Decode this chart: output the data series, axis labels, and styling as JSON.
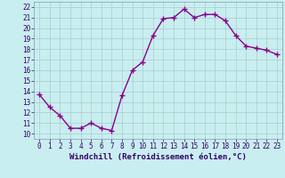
{
  "x": [
    0,
    1,
    2,
    3,
    4,
    5,
    6,
    7,
    8,
    9,
    10,
    11,
    12,
    13,
    14,
    15,
    16,
    17,
    18,
    19,
    20,
    21,
    22,
    23
  ],
  "y": [
    13.7,
    12.5,
    11.7,
    10.5,
    10.5,
    11.0,
    10.5,
    10.3,
    13.6,
    16.0,
    16.8,
    19.3,
    20.9,
    21.0,
    21.8,
    21.0,
    21.3,
    21.3,
    20.7,
    19.3,
    18.3,
    18.1,
    17.9,
    17.5
  ],
  "line_color": "#8B008B",
  "marker": "+",
  "marker_size": 4,
  "bg_color": "#c8eef0",
  "grid_color": "#aacccc",
  "xlabel": "Windchill (Refroidissement éolien,°C)",
  "xlim": [
    -0.5,
    23.5
  ],
  "ylim": [
    9.5,
    22.5
  ],
  "yticks": [
    10,
    11,
    12,
    13,
    14,
    15,
    16,
    17,
    18,
    19,
    20,
    21,
    22
  ],
  "xticks": [
    0,
    1,
    2,
    3,
    4,
    5,
    6,
    7,
    8,
    9,
    10,
    11,
    12,
    13,
    14,
    15,
    16,
    17,
    18,
    19,
    20,
    21,
    22,
    23
  ],
  "tick_label_fontsize": 5.5,
  "xlabel_fontsize": 6.5,
  "line_width": 1.0,
  "marker_color": "#8B008B"
}
